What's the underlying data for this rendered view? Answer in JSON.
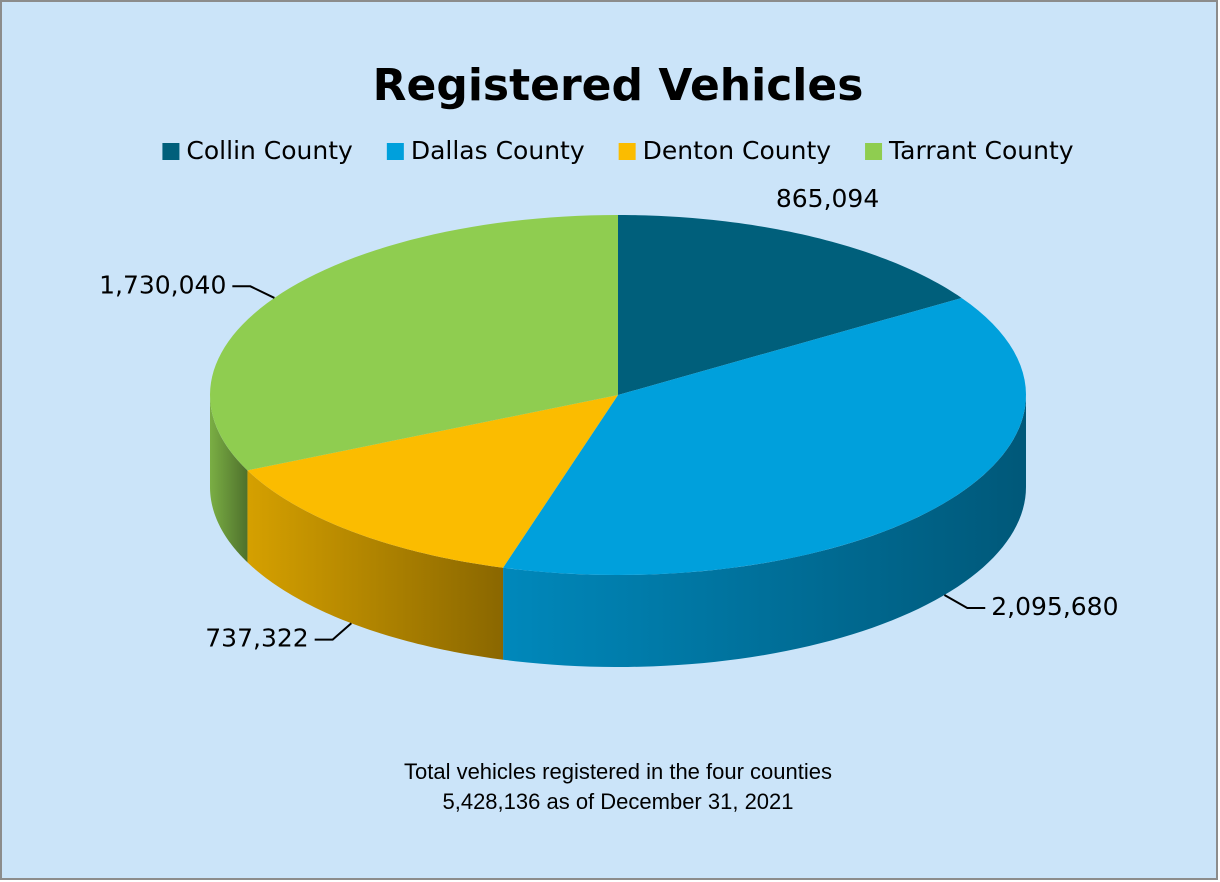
{
  "chart_data": {
    "type": "pie",
    "title": "Registered Vehicles",
    "categories": [
      "Collin County",
      "Dallas County",
      "Denton County",
      "Tarrant County"
    ],
    "values": [
      865094,
      2095680,
      737322,
      1730040
    ],
    "value_labels": [
      "865,094",
      "2,095,680",
      "737,322",
      "1,730,040"
    ],
    "colors": [
      "#005f7b",
      "#00a0dc",
      "#fbbc00",
      "#8fcd50"
    ],
    "legend": "top",
    "annotations": [
      "Total vehicles registered in the four counties",
      "5,428,136 as of December 31, 2021"
    ]
  }
}
